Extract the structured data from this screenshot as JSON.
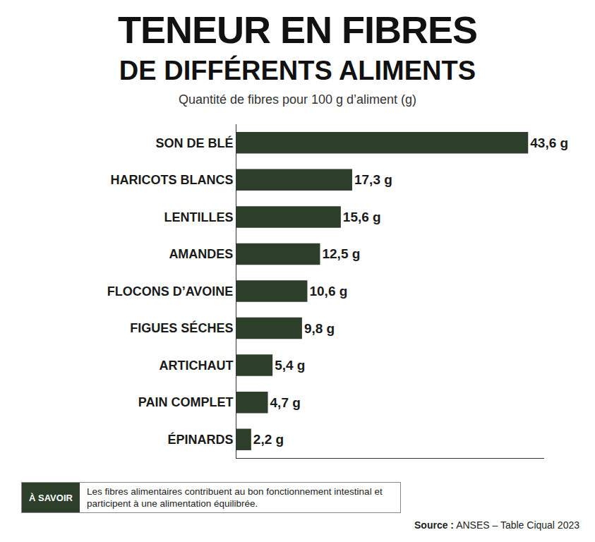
{
  "chart_data": {
    "type": "bar",
    "orientation": "horizontal",
    "title": "TENEUR EN FIBRES",
    "subtitle": "DE DIFFÉRENTS ALIMENTS",
    "xlabel": "Quantité de fibres pour 100 g d’aliment (g)",
    "categories": [
      "SON DE BLÉ",
      "HARICOTS BLANCS",
      "LENTILLES",
      "AMANDES",
      "FLOCONS D’AVOINE",
      "FIGUES SÉCHES",
      "ARTICHAUT",
      "PAIN COMPLET",
      "ÉPINARDS"
    ],
    "values": [
      43.6,
      17.3,
      15.6,
      12.5,
      10.6,
      9.8,
      5.4,
      4.7,
      2.2
    ],
    "value_labels": [
      "43,6 g",
      "17,3 g",
      "15,6 g",
      "12,5 g",
      "10,6 g",
      "9,8 g",
      "5,4 g",
      "4,7 g",
      "2,2 g"
    ],
    "color": "#2d3e2b",
    "xlim": [
      0,
      46
    ],
    "xticks": [],
    "grid": false,
    "data_labels": true,
    "tick_labels": "y",
    "note": {
      "label": "À SAVOIR",
      "text": "Les fibres alimentaires contribuent au bon fonctionnement intestinal et participent à une alimentation équilibrée."
    },
    "source": {
      "label": "Source :",
      "text": "ANSES – Table Ciqual 2023"
    }
  }
}
